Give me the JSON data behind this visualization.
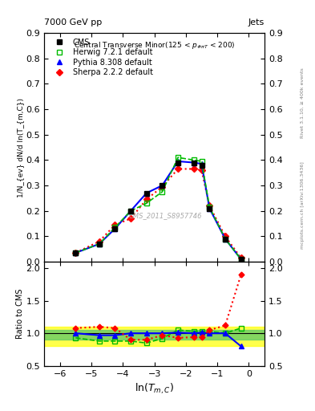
{
  "title_top": "7000 GeV pp",
  "title_top_right": "Jets",
  "plot_title": "Central Transverse Minor(125 < p_{#piT} < 200)",
  "xlabel": "ln(T_{m,C})",
  "ylabel_main": "1/N_{ev} dN/d ln(T_{m,C})",
  "ylabel_ratio": "Ratio to CMS",
  "right_label_top": "Rivet 3.1.10, ≥ 400k events",
  "right_label_bottom": "mcplots.cern.ch [arXiv:1306.3436]",
  "watermark": "CMS_2011_S8957746",
  "x_data": [
    -5.5,
    -4.75,
    -4.25,
    -3.75,
    -3.25,
    -2.75,
    -2.25,
    -1.75,
    -1.5,
    -1.25,
    -0.75,
    -0.25
  ],
  "cms_y": [
    0.035,
    0.07,
    0.13,
    0.2,
    0.27,
    0.3,
    0.39,
    0.39,
    0.38,
    0.21,
    0.09,
    0.01
  ],
  "herwig_y": [
    0.035,
    0.07,
    0.135,
    0.2,
    0.23,
    0.275,
    0.41,
    0.4,
    0.395,
    0.215,
    0.09,
    0.01
  ],
  "pythia_y": [
    0.035,
    0.07,
    0.13,
    0.2,
    0.27,
    0.3,
    0.395,
    0.39,
    0.385,
    0.21,
    0.09,
    0.01
  ],
  "sherpa_y": [
    0.035,
    0.08,
    0.145,
    0.17,
    0.245,
    0.295,
    0.365,
    0.365,
    0.36,
    0.22,
    0.1,
    0.015
  ],
  "herwig_ratio": [
    0.93,
    0.88,
    0.88,
    0.88,
    0.85,
    0.92,
    1.05,
    1.03,
    1.03,
    1.03,
    1.0,
    1.08
  ],
  "pythia_ratio": [
    1.0,
    0.97,
    0.97,
    1.0,
    1.0,
    1.0,
    1.01,
    1.0,
    1.01,
    1.0,
    1.0,
    0.8
  ],
  "sherpa_ratio": [
    1.08,
    1.1,
    1.08,
    0.9,
    0.9,
    0.97,
    0.93,
    0.94,
    0.94,
    1.05,
    1.12,
    1.9
  ],
  "cms_color": "#000000",
  "herwig_color": "#00bb00",
  "pythia_color": "#0000ff",
  "sherpa_color": "#ff0000",
  "ylim_main": [
    0.0,
    0.9
  ],
  "ylim_ratio": [
    0.5,
    2.1
  ],
  "xlim": [
    -6.5,
    0.5
  ],
  "yticks_main": [
    0.0,
    0.1,
    0.2,
    0.3,
    0.4,
    0.5,
    0.6,
    0.7,
    0.8,
    0.9
  ],
  "yticks_ratio": [
    0.5,
    1.0,
    1.5,
    2.0
  ],
  "xticks": [
    -6,
    -5,
    -4,
    -3,
    -2,
    -1,
    0
  ],
  "band_yellow": [
    0.8,
    1.1
  ],
  "band_green": [
    0.9,
    1.05
  ]
}
